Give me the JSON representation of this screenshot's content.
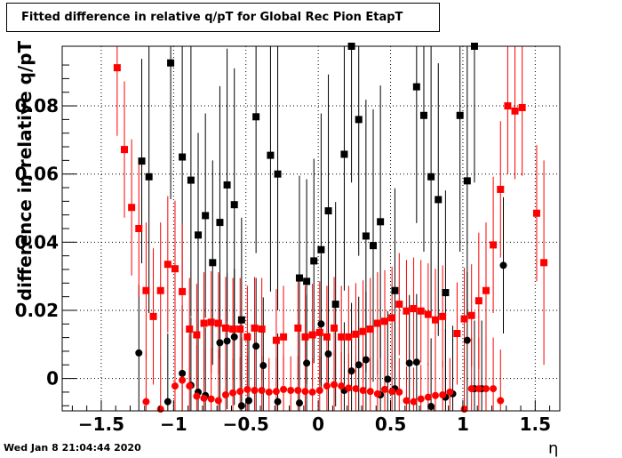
{
  "header": {
    "title": "Fitted difference in relative q/pT  for Global Rec Pion EtapT"
  },
  "footer": {
    "timestamp": "Wed Jan  8 21:04:44 2020"
  },
  "colors": {
    "series_a": "#000000",
    "series_b": "#ff0000",
    "grid": "#000000",
    "axes": "#000000"
  },
  "chart_data": {
    "type": "scatter",
    "title": "Fitted difference in relative q/pT  for Global Rec Pion EtapT",
    "xlabel": "η",
    "ylabel": "difference in relative q/pT",
    "xlim": [
      -1.77,
      1.67
    ],
    "ylim": [
      -0.0095,
      0.0975
    ],
    "grid": true,
    "legend": "none",
    "x_ticks": [
      {
        "value": -1.5,
        "label": "−1.5"
      },
      {
        "value": -1.0,
        "label": "−1"
      },
      {
        "value": -0.5,
        "label": "−0.5"
      },
      {
        "value": 0,
        "label": "0"
      },
      {
        "value": 0.5,
        "label": "0.5"
      },
      {
        "value": 1.0,
        "label": "1"
      },
      {
        "value": 1.5,
        "label": "1.5"
      }
    ],
    "y_ticks": [
      {
        "value": 0,
        "label": "0"
      },
      {
        "value": 0.02,
        "label": "0.02"
      },
      {
        "value": 0.04,
        "label": "0.04"
      },
      {
        "value": 0.06,
        "label": "0.06"
      },
      {
        "value": 0.08,
        "label": "0.08"
      }
    ],
    "series": [
      {
        "marker": "square",
        "color": "#000000",
        "points": [
          {
            "x": -1.22,
            "y": 0.0638,
            "err": 0.03
          },
          {
            "x": -1.17,
            "y": 0.0592,
            "err": 0.04
          },
          {
            "x": -1.02,
            "y": 0.0926,
            "err": 0.04
          },
          {
            "x": -0.94,
            "y": 0.065,
            "err": 0.04
          },
          {
            "x": -0.88,
            "y": 0.0582,
            "err": 0.04
          },
          {
            "x": -0.83,
            "y": 0.0421,
            "err": 0.03
          },
          {
            "x": -0.78,
            "y": 0.0478,
            "err": 0.03
          },
          {
            "x": -0.73,
            "y": 0.034,
            "err": 0.03
          },
          {
            "x": -0.68,
            "y": 0.0458,
            "err": 0.04
          },
          {
            "x": -0.63,
            "y": 0.0568,
            "err": 0.04
          },
          {
            "x": -0.58,
            "y": 0.051,
            "err": 0.04
          },
          {
            "x": -0.53,
            "y": 0.0172,
            "err": 0.03
          },
          {
            "x": -0.43,
            "y": 0.0768,
            "err": 0.04
          },
          {
            "x": -0.33,
            "y": 0.0655,
            "err": 0.04
          },
          {
            "x": -0.28,
            "y": 0.06,
            "err": 0.04
          },
          {
            "x": -0.13,
            "y": 0.0295,
            "err": 0.03
          },
          {
            "x": -0.08,
            "y": 0.0285,
            "err": 0.03
          },
          {
            "x": -0.03,
            "y": 0.0345,
            "err": 0.03
          },
          {
            "x": 0.02,
            "y": 0.0378,
            "err": 0.04
          },
          {
            "x": 0.07,
            "y": 0.0492,
            "err": 0.04
          },
          {
            "x": 0.12,
            "y": 0.0218,
            "err": 0.03
          },
          {
            "x": 0.18,
            "y": 0.0658,
            "err": 0.04
          },
          {
            "x": 0.23,
            "y": 0.0975,
            "err": 0.04
          },
          {
            "x": 0.28,
            "y": 0.076,
            "err": 0.04
          },
          {
            "x": 0.33,
            "y": 0.0418,
            "err": 0.04
          },
          {
            "x": 0.38,
            "y": 0.039,
            "err": 0.04
          },
          {
            "x": 0.43,
            "y": 0.046,
            "err": 0.04
          },
          {
            "x": 0.53,
            "y": 0.0258,
            "err": 0.03
          },
          {
            "x": 0.68,
            "y": 0.0856,
            "err": 0.04
          },
          {
            "x": 0.73,
            "y": 0.0772,
            "err": 0.04
          },
          {
            "x": 0.78,
            "y": 0.0592,
            "err": 0.04
          },
          {
            "x": 0.83,
            "y": 0.0525,
            "err": 0.04
          },
          {
            "x": 0.88,
            "y": 0.0252,
            "err": 0.03
          },
          {
            "x": 0.98,
            "y": 0.0772,
            "err": 0.04
          },
          {
            "x": 1.03,
            "y": 0.058,
            "err": 0.04
          },
          {
            "x": 1.08,
            "y": 0.0975,
            "err": 0.04
          }
        ]
      },
      {
        "marker": "circle",
        "color": "#000000",
        "points": [
          {
            "x": -1.24,
            "y": 0.0075,
            "err": 0.02
          },
          {
            "x": -1.04,
            "y": -0.0068,
            "err": 0.02
          },
          {
            "x": -0.94,
            "y": 0.0015,
            "err": 0.02
          },
          {
            "x": -0.88,
            "y": -0.002,
            "err": 0.02
          },
          {
            "x": -0.83,
            "y": -0.004,
            "err": 0.02
          },
          {
            "x": -0.78,
            "y": -0.005,
            "err": 0.02
          },
          {
            "x": -0.68,
            "y": 0.0105,
            "err": 0.02
          },
          {
            "x": -0.63,
            "y": 0.011,
            "err": 0.02
          },
          {
            "x": -0.58,
            "y": 0.0122,
            "err": 0.02
          },
          {
            "x": -0.53,
            "y": -0.008,
            "err": 0.02
          },
          {
            "x": -0.48,
            "y": -0.0065,
            "err": 0.02
          },
          {
            "x": -0.43,
            "y": 0.0095,
            "err": 0.02
          },
          {
            "x": -0.38,
            "y": 0.0038,
            "err": 0.02
          },
          {
            "x": -0.28,
            "y": -0.0068,
            "err": 0.02
          },
          {
            "x": -0.13,
            "y": -0.0072,
            "err": 0.02
          },
          {
            "x": -0.08,
            "y": 0.0045,
            "err": 0.02
          },
          {
            "x": 0.02,
            "y": 0.016,
            "err": 0.02
          },
          {
            "x": 0.07,
            "y": 0.0072,
            "err": 0.02
          },
          {
            "x": 0.18,
            "y": -0.0035,
            "err": 0.02
          },
          {
            "x": 0.23,
            "y": 0.0022,
            "err": 0.02
          },
          {
            "x": 0.28,
            "y": 0.004,
            "err": 0.02
          },
          {
            "x": 0.33,
            "y": 0.0055,
            "err": 0.02
          },
          {
            "x": 0.43,
            "y": -0.0048,
            "err": 0.02
          },
          {
            "x": 0.48,
            "y": -0.0002,
            "err": 0.02
          },
          {
            "x": 0.53,
            "y": -0.003,
            "err": 0.02
          },
          {
            "x": 0.63,
            "y": 0.0045,
            "err": 0.02
          },
          {
            "x": 0.68,
            "y": 0.0048,
            "err": 0.02
          },
          {
            "x": 0.78,
            "y": -0.0082,
            "err": 0.02
          },
          {
            "x": 0.88,
            "y": -0.0055,
            "err": 0.02
          },
          {
            "x": 0.93,
            "y": -0.0045,
            "err": 0.02
          },
          {
            "x": 1.03,
            "y": 0.0112,
            "err": 0.02
          },
          {
            "x": 1.08,
            "y": -0.003,
            "err": 0.02
          },
          {
            "x": 1.13,
            "y": -0.003,
            "err": 0.02
          },
          {
            "x": 1.28,
            "y": 0.0332,
            "err": 0.02
          }
        ]
      },
      {
        "marker": "square",
        "color": "#ff0000",
        "points": [
          {
            "x": -1.39,
            "y": 0.0912,
            "err": 0.02
          },
          {
            "x": -1.34,
            "y": 0.0672,
            "err": 0.02
          },
          {
            "x": -1.29,
            "y": 0.0502,
            "err": 0.02
          },
          {
            "x": -1.24,
            "y": 0.044,
            "err": 0.02
          },
          {
            "x": -1.19,
            "y": 0.0258,
            "err": 0.02
          },
          {
            "x": -1.14,
            "y": 0.0182,
            "err": 0.02
          },
          {
            "x": -1.09,
            "y": 0.0258,
            "err": 0.02
          },
          {
            "x": -1.04,
            "y": 0.0335,
            "err": 0.02
          },
          {
            "x": -0.99,
            "y": 0.0322,
            "err": 0.02
          },
          {
            "x": -0.94,
            "y": 0.0255,
            "err": 0.02
          },
          {
            "x": -0.89,
            "y": 0.0145,
            "err": 0.015
          },
          {
            "x": -0.84,
            "y": 0.0128,
            "err": 0.015
          },
          {
            "x": -0.79,
            "y": 0.0162,
            "err": 0.015
          },
          {
            "x": -0.74,
            "y": 0.0165,
            "err": 0.015
          },
          {
            "x": -0.69,
            "y": 0.0162,
            "err": 0.015
          },
          {
            "x": -0.64,
            "y": 0.0148,
            "err": 0.015
          },
          {
            "x": -0.59,
            "y": 0.0145,
            "err": 0.015
          },
          {
            "x": -0.54,
            "y": 0.0145,
            "err": 0.015
          },
          {
            "x": -0.49,
            "y": 0.0122,
            "err": 0.015
          },
          {
            "x": -0.44,
            "y": 0.0148,
            "err": 0.015
          },
          {
            "x": -0.39,
            "y": 0.0145,
            "err": 0.015
          },
          {
            "x": -0.29,
            "y": 0.0112,
            "err": 0.015
          },
          {
            "x": -0.24,
            "y": 0.0122,
            "err": 0.015
          },
          {
            "x": -0.14,
            "y": 0.0148,
            "err": 0.015
          },
          {
            "x": -0.09,
            "y": 0.0122,
            "err": 0.015
          },
          {
            "x": -0.04,
            "y": 0.0128,
            "err": 0.015
          },
          {
            "x": 0.01,
            "y": 0.0135,
            "err": 0.015
          },
          {
            "x": 0.06,
            "y": 0.0122,
            "err": 0.015
          },
          {
            "x": 0.11,
            "y": 0.0148,
            "err": 0.015
          },
          {
            "x": 0.16,
            "y": 0.0122,
            "err": 0.015
          },
          {
            "x": 0.21,
            "y": 0.0122,
            "err": 0.015
          },
          {
            "x": 0.26,
            "y": 0.013,
            "err": 0.015
          },
          {
            "x": 0.31,
            "y": 0.0138,
            "err": 0.015
          },
          {
            "x": 0.36,
            "y": 0.0145,
            "err": 0.015
          },
          {
            "x": 0.41,
            "y": 0.0162,
            "err": 0.015
          },
          {
            "x": 0.46,
            "y": 0.0168,
            "err": 0.015
          },
          {
            "x": 0.51,
            "y": 0.0178,
            "err": 0.015
          },
          {
            "x": 0.56,
            "y": 0.0218,
            "err": 0.015
          },
          {
            "x": 0.61,
            "y": 0.0198,
            "err": 0.015
          },
          {
            "x": 0.66,
            "y": 0.0205,
            "err": 0.015
          },
          {
            "x": 0.71,
            "y": 0.0198,
            "err": 0.015
          },
          {
            "x": 0.76,
            "y": 0.0188,
            "err": 0.015
          },
          {
            "x": 0.81,
            "y": 0.0172,
            "err": 0.015
          },
          {
            "x": 0.86,
            "y": 0.0182,
            "err": 0.015
          },
          {
            "x": 0.96,
            "y": 0.0132,
            "err": 0.015
          },
          {
            "x": 1.01,
            "y": 0.0175,
            "err": 0.015
          },
          {
            "x": 1.06,
            "y": 0.0185,
            "err": 0.015
          },
          {
            "x": 1.11,
            "y": 0.0228,
            "err": 0.02
          },
          {
            "x": 1.16,
            "y": 0.0258,
            "err": 0.02
          },
          {
            "x": 1.21,
            "y": 0.0392,
            "err": 0.02
          },
          {
            "x": 1.26,
            "y": 0.0555,
            "err": 0.02
          },
          {
            "x": 1.31,
            "y": 0.08,
            "err": 0.02
          },
          {
            "x": 1.36,
            "y": 0.0785,
            "err": 0.02
          },
          {
            "x": 1.41,
            "y": 0.0795,
            "err": 0.02
          },
          {
            "x": 1.51,
            "y": 0.0485,
            "err": 0.02
          },
          {
            "x": 1.56,
            "y": 0.034,
            "err": 0.03
          }
        ]
      },
      {
        "marker": "circle",
        "color": "#ff0000",
        "points": [
          {
            "x": -1.19,
            "y": -0.0068,
            "err": 0.015
          },
          {
            "x": -1.09,
            "y": -0.009,
            "err": 0.015
          },
          {
            "x": -0.99,
            "y": -0.0022,
            "err": 0.015
          },
          {
            "x": -0.94,
            "y": -0.0005,
            "err": 0.015
          },
          {
            "x": -0.89,
            "y": -0.0022,
            "err": 0.015
          },
          {
            "x": -0.84,
            "y": -0.0052,
            "err": 0.015
          },
          {
            "x": -0.79,
            "y": -0.0058,
            "err": 0.015
          },
          {
            "x": -0.74,
            "y": -0.006,
            "err": 0.015
          },
          {
            "x": -0.69,
            "y": -0.0065,
            "err": 0.015
          },
          {
            "x": -0.64,
            "y": -0.0048,
            "err": 0.01
          },
          {
            "x": -0.59,
            "y": -0.0042,
            "err": 0.01
          },
          {
            "x": -0.54,
            "y": -0.0038,
            "err": 0.01
          },
          {
            "x": -0.49,
            "y": -0.0032,
            "err": 0.01
          },
          {
            "x": -0.44,
            "y": -0.0035,
            "err": 0.01
          },
          {
            "x": -0.39,
            "y": -0.0035,
            "err": 0.01
          },
          {
            "x": -0.34,
            "y": -0.004,
            "err": 0.01
          },
          {
            "x": -0.29,
            "y": -0.0038,
            "err": 0.01
          },
          {
            "x": -0.24,
            "y": -0.0032,
            "err": 0.01
          },
          {
            "x": -0.19,
            "y": -0.0035,
            "err": 0.01
          },
          {
            "x": -0.14,
            "y": -0.0035,
            "err": 0.01
          },
          {
            "x": -0.09,
            "y": -0.0038,
            "err": 0.01
          },
          {
            "x": -0.04,
            "y": -0.004,
            "err": 0.01
          },
          {
            "x": 0.01,
            "y": -0.0035,
            "err": 0.01
          },
          {
            "x": 0.06,
            "y": -0.0022,
            "err": 0.01
          },
          {
            "x": 0.11,
            "y": -0.0018,
            "err": 0.01
          },
          {
            "x": 0.16,
            "y": -0.0022,
            "err": 0.01
          },
          {
            "x": 0.21,
            "y": -0.0028,
            "err": 0.01
          },
          {
            "x": 0.26,
            "y": -0.003,
            "err": 0.01
          },
          {
            "x": 0.31,
            "y": -0.0035,
            "err": 0.01
          },
          {
            "x": 0.36,
            "y": -0.0038,
            "err": 0.01
          },
          {
            "x": 0.41,
            "y": -0.0045,
            "err": 0.01
          },
          {
            "x": 0.46,
            "y": -0.0032,
            "err": 0.01
          },
          {
            "x": 0.51,
            "y": -0.0038,
            "err": 0.01
          },
          {
            "x": 0.56,
            "y": -0.004,
            "err": 0.01
          },
          {
            "x": 0.61,
            "y": -0.0065,
            "err": 0.01
          },
          {
            "x": 0.66,
            "y": -0.0068,
            "err": 0.01
          },
          {
            "x": 0.71,
            "y": -0.006,
            "err": 0.01
          },
          {
            "x": 0.76,
            "y": -0.0055,
            "err": 0.01
          },
          {
            "x": 0.81,
            "y": -0.005,
            "err": 0.01
          },
          {
            "x": 0.86,
            "y": -0.0048,
            "err": 0.01
          },
          {
            "x": 0.91,
            "y": -0.004,
            "err": 0.01
          },
          {
            "x": 1.01,
            "y": -0.009,
            "err": 0.015
          },
          {
            "x": 1.06,
            "y": -0.003,
            "err": 0.015
          },
          {
            "x": 1.11,
            "y": -0.003,
            "err": 0.015
          },
          {
            "x": 1.16,
            "y": -0.003,
            "err": 0.015
          },
          {
            "x": 1.21,
            "y": -0.003,
            "err": 0.015
          },
          {
            "x": 1.26,
            "y": -0.0065,
            "err": 0.015
          }
        ]
      }
    ]
  }
}
